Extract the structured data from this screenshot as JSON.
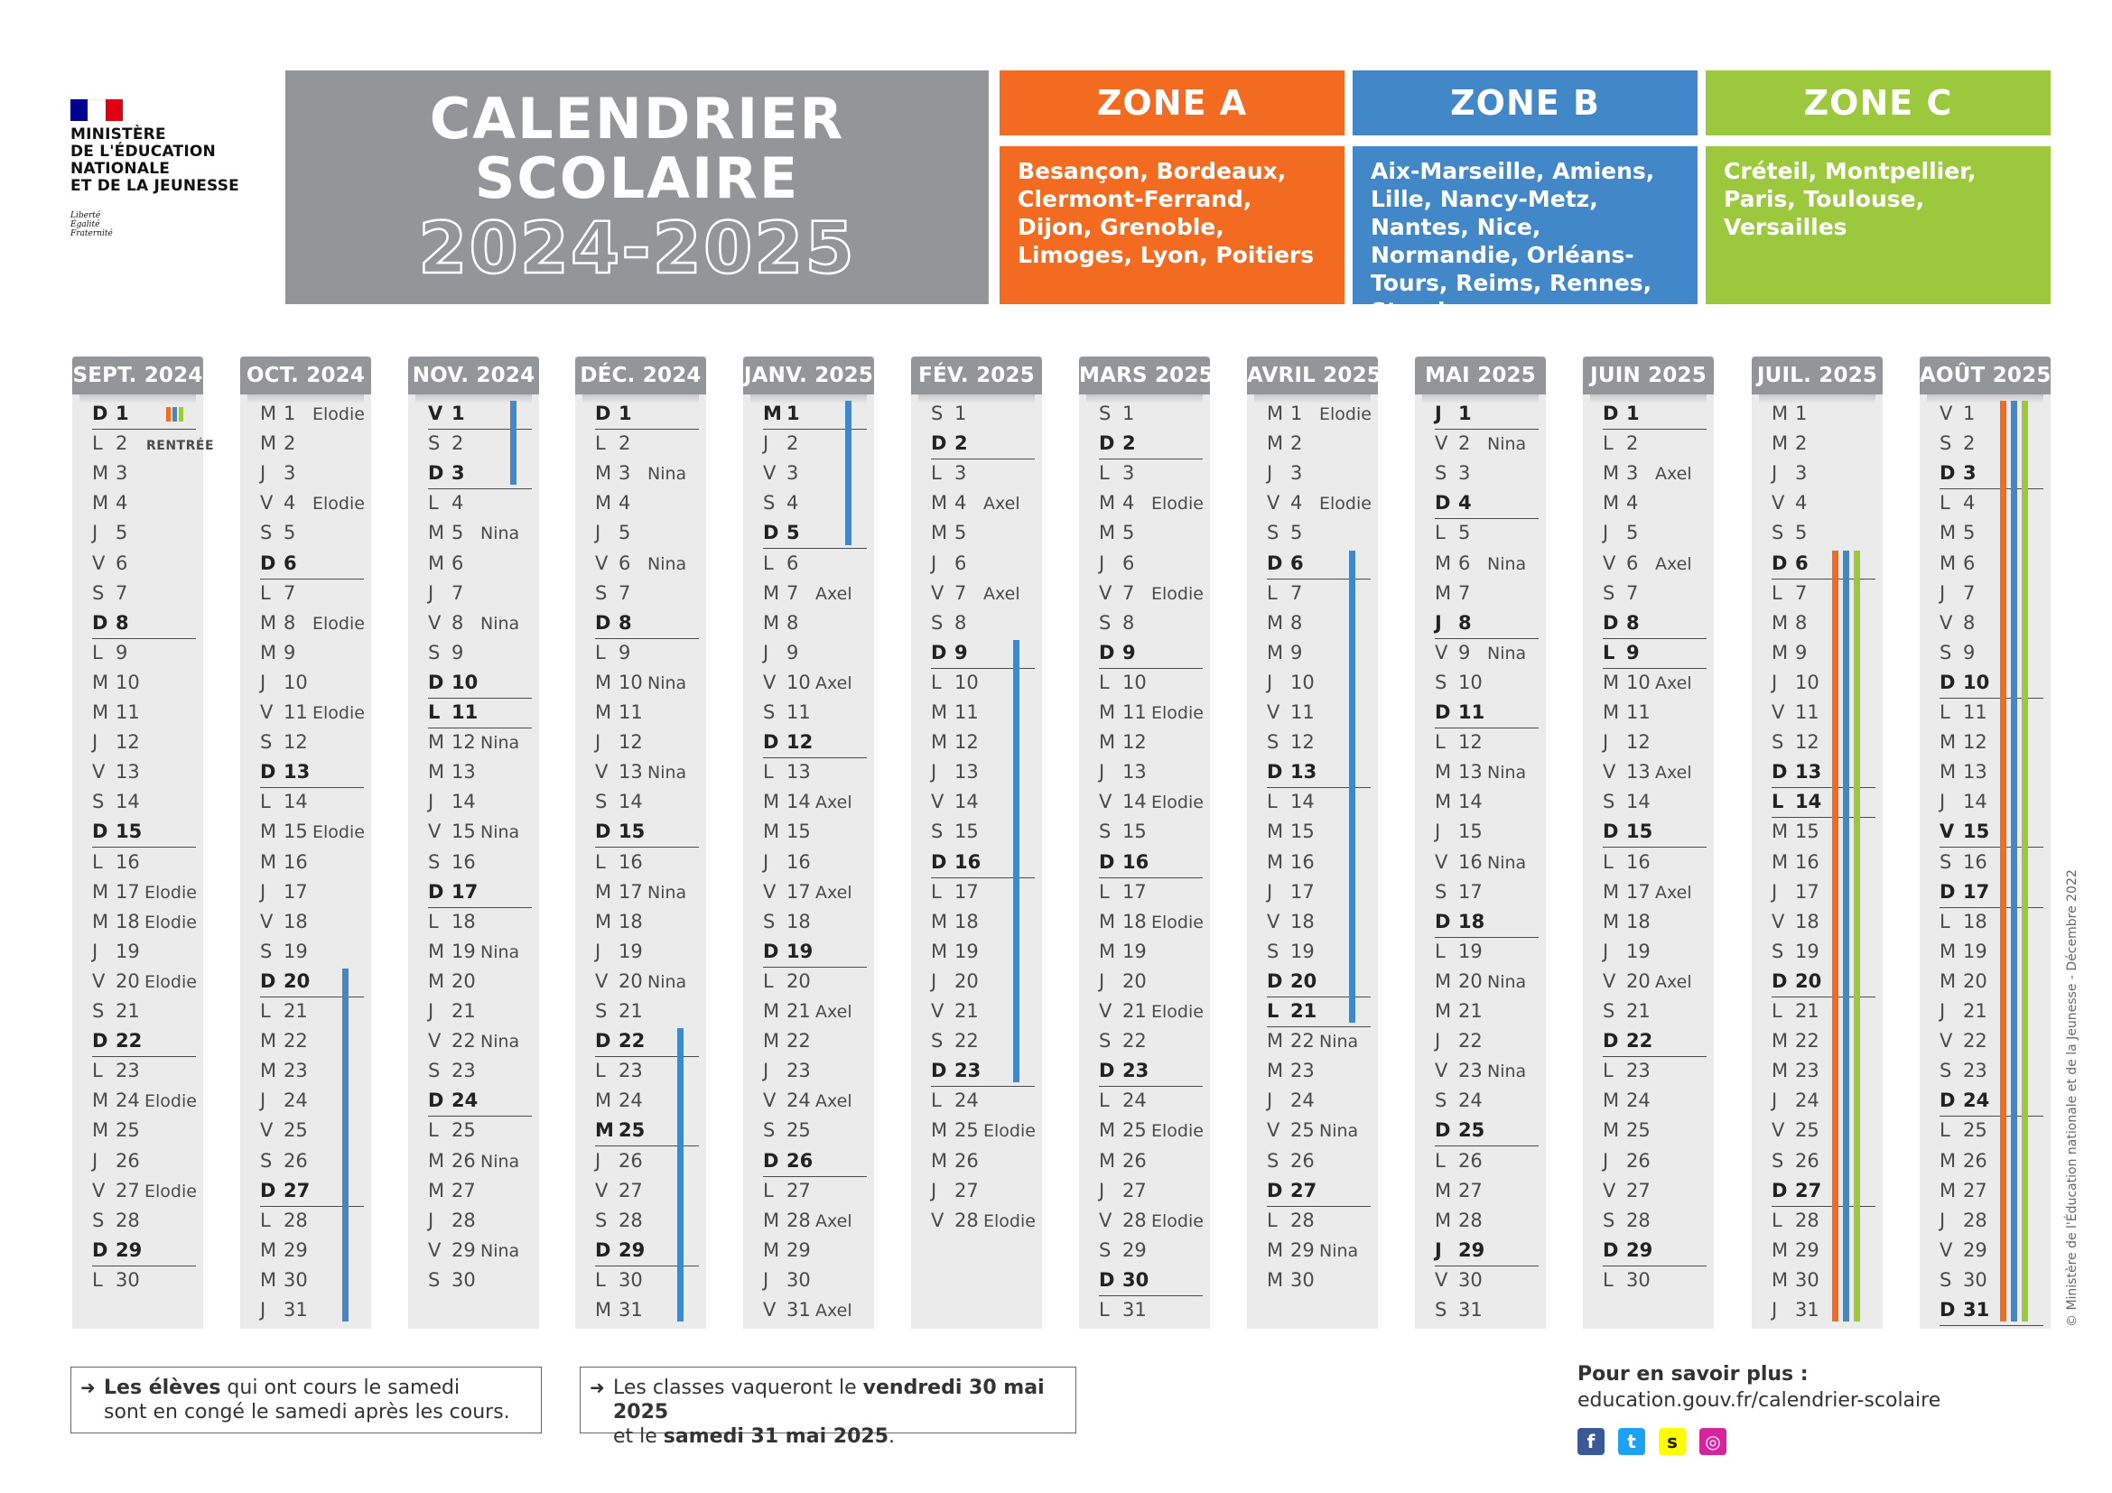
{
  "ministry": {
    "name_lines": [
      "MINISTÈRE",
      "DE L'ÉDUCATION",
      "NATIONALE",
      "ET DE LA JEUNESSE"
    ],
    "motto_lines": [
      "Liberté",
      "Égalité",
      "Fraternité"
    ],
    "flag_colors": [
      "#000091",
      "#ffffff",
      "#e1000f"
    ]
  },
  "title": {
    "line1": "CALENDRIER",
    "line2": "SCOLAIRE",
    "years": "2024-2025"
  },
  "zones": [
    {
      "name": "ZONE A",
      "color": "#f26b21",
      "cities": "Besançon, Bordeaux, Clermont-Ferrand, Dijon, Grenoble, Limoges, Lyon, Poitiers"
    },
    {
      "name": "ZONE B",
      "color": "#4288c8",
      "cities": "Aix-Marseille, Amiens, Lille, Nancy-Metz, Nantes, Nice, Normandie, Orléans-Tours, Reims, Rennes, Strasbourg"
    },
    {
      "name": "ZONE C",
      "color": "#9bc83c",
      "cities": "Créteil, Montpellier, Paris, Toulouse, Versailles"
    }
  ],
  "months": [
    {
      "label": "SEPT. 2024",
      "first": "D",
      "days": 30,
      "names": {
        "20": "Elodie",
        "24": "Elodie",
        "27": "Elodie",
        "17": "Elodie",
        "18": "Elodie"
      },
      "bold_extra": []
    },
    {
      "label": "OCT. 2024",
      "first": "M",
      "days": 31,
      "names": {
        "1": "Elodie",
        "4": "Elodie",
        "8": "Elodie",
        "11": "Elodie",
        "15": "Elodie"
      },
      "bold_extra": []
    },
    {
      "label": "NOV. 2024",
      "first": "V",
      "days": 30,
      "names": {
        "5": "Nina",
        "8": "Nina",
        "12": "Nina",
        "15": "Nina",
        "19": "Nina",
        "22": "Nina",
        "26": "Nina",
        "29": "Nina"
      },
      "bold_extra": [
        1,
        11
      ]
    },
    {
      "label": "DÉC. 2024",
      "first": "D",
      "days": 31,
      "names": {
        "3": "Nina",
        "6": "Nina",
        "10": "Nina",
        "13": "Nina",
        "17": "Nina",
        "20": "Nina"
      },
      "bold_extra": [
        25
      ]
    },
    {
      "label": "JANV. 2025",
      "first": "M",
      "days": 31,
      "names": {
        "7": "Axel",
        "10": "Axel",
        "14": "Axel",
        "17": "Axel",
        "21": "Axel",
        "24": "Axel",
        "28": "Axel",
        "31": "Axel"
      },
      "bold_extra": [
        1
      ]
    },
    {
      "label": "FÉV. 2025",
      "first": "S",
      "days": 28,
      "names": {
        "4": "Axel",
        "7": "Axel",
        "25": "Elodie",
        "28": "Elodie"
      },
      "bold_extra": []
    },
    {
      "label": "MARS 2025",
      "first": "S",
      "days": 31,
      "names": {
        "4": "Elodie",
        "7": "Elodie",
        "11": "Elodie",
        "14": "Elodie",
        "18": "Elodie",
        "21": "Elodie",
        "25": "Elodie",
        "28": "Elodie"
      },
      "bold_extra": []
    },
    {
      "label": "AVRIL 2025",
      "first": "M",
      "days": 30,
      "names": {
        "1": "Elodie",
        "4": "Elodie",
        "22": "Nina",
        "25": "Nina",
        "29": "Nina"
      },
      "bold_extra": [
        21
      ]
    },
    {
      "label": "MAI 2025",
      "first": "J",
      "days": 31,
      "names": {
        "2": "Nina",
        "6": "Nina",
        "9": "Nina",
        "13": "Nina",
        "16": "Nina",
        "20": "Nina",
        "23": "Nina"
      },
      "bold_extra": [
        1,
        8,
        29
      ]
    },
    {
      "label": "JUIN 2025",
      "first": "D",
      "days": 30,
      "names": {
        "3": "Axel",
        "6": "Axel",
        "10": "Axel",
        "13": "Axel",
        "17": "Axel",
        "20": "Axel"
      },
      "bold_extra": [
        9
      ]
    },
    {
      "label": "JUIL. 2025",
      "first": "M",
      "days": 31,
      "names": {},
      "bold_extra": [
        14
      ]
    },
    {
      "label": "AOÛT 2025",
      "first": "V",
      "days": 31,
      "names": {},
      "bold_extra": [
        15
      ]
    }
  ],
  "rentree_label": "RENTRÉE",
  "notes": {
    "left_bold": "Les élèves",
    "left_rest": " qui ont cours le samedi",
    "left_line2": "sont en congé le samedi après les cours.",
    "right_prefix": "Les classes vaqueront le ",
    "right_bold1": "vendredi 30 mai 2025",
    "right_mid": "et le ",
    "right_bold2": "samedi 31 mai 2025",
    "right_end": "."
  },
  "more_info": {
    "title": "Pour en savoir plus :",
    "url": "education.gouv.fr/calendrier-scolaire"
  },
  "social": [
    {
      "icon": "facebook-icon",
      "glyph": "f",
      "color": "#3b5998"
    },
    {
      "icon": "twitter-icon",
      "glyph": "t",
      "color": "#1da1f2"
    },
    {
      "icon": "snapchat-icon",
      "glyph": "s",
      "color": "#fffc00"
    },
    {
      "icon": "instagram-icon",
      "glyph": "◎",
      "color": "#d6249f"
    }
  ],
  "credit": "© Ministère de l'Éducation nationale et de la Jeunesse - Décembre 2022"
}
